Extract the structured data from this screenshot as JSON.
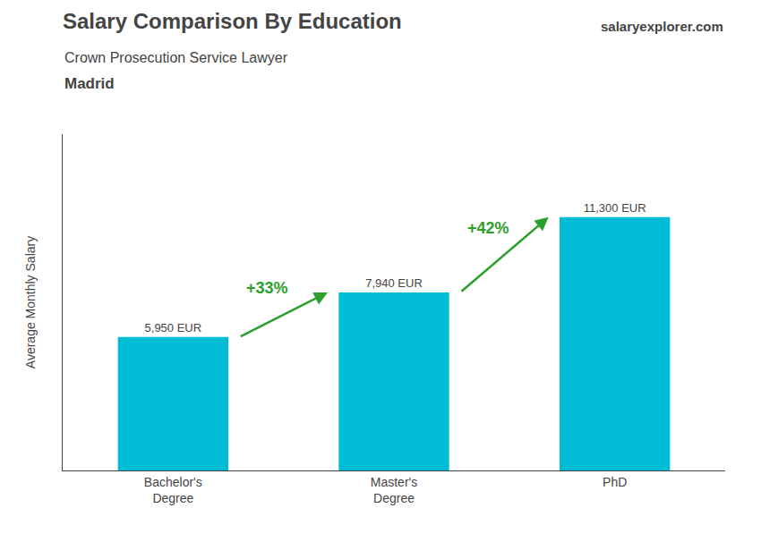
{
  "chart_data": {
    "type": "bar",
    "title": "Salary Comparison By Education",
    "subtitle": "Crown Prosecution Service Lawyer",
    "categories": [
      "Bachelor's\nDegree",
      "Master's\nDegree",
      "PhD"
    ],
    "values": [
      5950,
      7940,
      11300
    ],
    "value_labels": [
      "5,950 EUR",
      "7,940 EUR",
      "11,300 EUR"
    ],
    "data_labels": true,
    "color": "#00bcd4",
    "ylabel": "Average Monthly Salary",
    "ylim": [
      0,
      15000
    ],
    "grid": false,
    "tick_labels": "x",
    "annotations": [
      {
        "text": "Madrid"
      },
      {
        "text": "salaryexplorer.com"
      },
      {
        "text": "+33%",
        "from": "Bachelor's\nDegree",
        "to": "Master's\nDegree"
      },
      {
        "text": "+42%",
        "from": "Master's\nDegree",
        "to": "PhD"
      }
    ]
  }
}
